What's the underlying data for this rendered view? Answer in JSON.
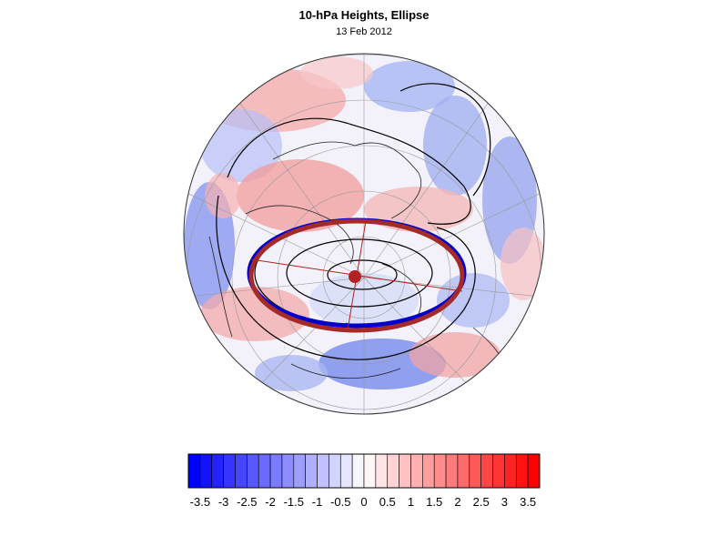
{
  "title": "10-hPa Heights, Ellipse",
  "subtitle": "13 Feb 2012",
  "colorbar": {
    "labels": [
      "-3.5",
      "-3",
      "-2.5",
      "-2",
      "-1.5",
      "-1",
      "-0.5",
      "0",
      "0.5",
      "1",
      "1.5",
      "2",
      "2.5",
      "3",
      "3.5"
    ],
    "min": -3.75,
    "max": 3.75,
    "step": 0.25,
    "neg_color": "#0000ff",
    "pos_color": "#ff0000",
    "neutral_color": "#ffffff"
  },
  "map": {
    "projection": "polar-stereographic",
    "hemisphere": "northern",
    "ellipse_color": "#a52a2a",
    "center_marker_color": "#b22222",
    "outline_color": "#0000cc"
  }
}
